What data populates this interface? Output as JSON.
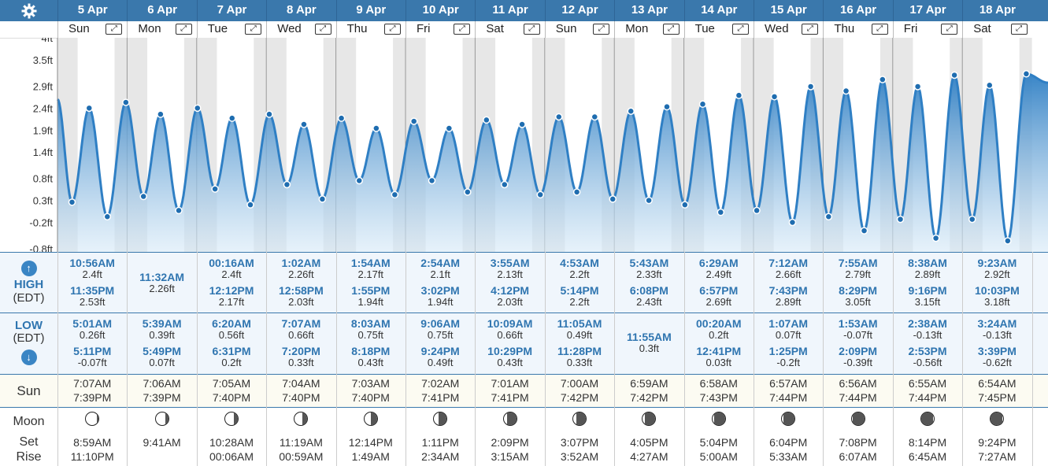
{
  "header": {
    "settings_icon": "gear-icon"
  },
  "days": [
    {
      "date": "5 Apr",
      "dow": "Sun",
      "high": [
        {
          "time": "10:56AM",
          "h": "2.4ft"
        },
        {
          "time": "11:35PM",
          "h": "2.53ft"
        }
      ],
      "low": [
        {
          "time": "5:01AM",
          "h": "0.26ft"
        },
        {
          "time": "5:11PM",
          "h": "-0.07ft"
        }
      ],
      "sunrise": "7:07AM",
      "sunset": "7:39PM",
      "moon_illum": 0.85,
      "moon_side": "left",
      "moonset": "8:59AM",
      "moonrise": "11:10PM"
    },
    {
      "date": "6 Apr",
      "dow": "Mon",
      "high": [
        {
          "time": "11:32AM",
          "h": "2.26ft"
        }
      ],
      "low": [
        {
          "time": "5:39AM",
          "h": "0.39ft"
        },
        {
          "time": "5:49PM",
          "h": "0.07ft"
        }
      ],
      "sunrise": "7:06AM",
      "sunset": "7:39PM",
      "moon_illum": 0.78,
      "moon_side": "left",
      "moonset": "9:41AM",
      "moonrise": ""
    },
    {
      "date": "7 Apr",
      "dow": "Tue",
      "high": [
        {
          "time": "00:16AM",
          "h": "2.4ft"
        },
        {
          "time": "12:12PM",
          "h": "2.17ft"
        }
      ],
      "low": [
        {
          "time": "6:20AM",
          "h": "0.56ft"
        },
        {
          "time": "6:31PM",
          "h": "0.2ft"
        }
      ],
      "sunrise": "7:05AM",
      "sunset": "7:40PM",
      "moon_illum": 0.68,
      "moon_side": "left",
      "moonset": "10:28AM",
      "moonrise": "00:06AM"
    },
    {
      "date": "8 Apr",
      "dow": "Wed",
      "high": [
        {
          "time": "1:02AM",
          "h": "2.26ft"
        },
        {
          "time": "12:58PM",
          "h": "2.03ft"
        }
      ],
      "low": [
        {
          "time": "7:07AM",
          "h": "0.66ft"
        },
        {
          "time": "7:20PM",
          "h": "0.33ft"
        }
      ],
      "sunrise": "7:04AM",
      "sunset": "7:40PM",
      "moon_illum": 0.55,
      "moon_side": "left",
      "moonset": "11:19AM",
      "moonrise": "00:59AM"
    },
    {
      "date": "9 Apr",
      "dow": "Thu",
      "high": [
        {
          "time": "1:54AM",
          "h": "2.17ft"
        },
        {
          "time": "1:55PM",
          "h": "1.94ft"
        }
      ],
      "low": [
        {
          "time": "8:03AM",
          "h": "0.75ft"
        },
        {
          "time": "8:18PM",
          "h": "0.43ft"
        }
      ],
      "sunrise": "7:03AM",
      "sunset": "7:40PM",
      "moon_illum": 0.45,
      "moon_side": "left",
      "moonset": "12:14PM",
      "moonrise": "1:49AM"
    },
    {
      "date": "10 Apr",
      "dow": "Fri",
      "high": [
        {
          "time": "2:54AM",
          "h": "2.1ft"
        },
        {
          "time": "3:02PM",
          "h": "1.94ft"
        }
      ],
      "low": [
        {
          "time": "9:06AM",
          "h": "0.75ft"
        },
        {
          "time": "9:24PM",
          "h": "0.49ft"
        }
      ],
      "sunrise": "7:02AM",
      "sunset": "7:41PM",
      "moon_illum": 0.35,
      "moon_side": "left",
      "moonset": "1:11PM",
      "moonrise": "2:34AM"
    },
    {
      "date": "11 Apr",
      "dow": "Sat",
      "high": [
        {
          "time": "3:55AM",
          "h": "2.13ft"
        },
        {
          "time": "4:12PM",
          "h": "2.03ft"
        }
      ],
      "low": [
        {
          "time": "10:09AM",
          "h": "0.66ft"
        },
        {
          "time": "10:29PM",
          "h": "0.43ft"
        }
      ],
      "sunrise": "7:01AM",
      "sunset": "7:41PM",
      "moon_illum": 0.26,
      "moon_side": "left",
      "moonset": "2:09PM",
      "moonrise": "3:15AM"
    },
    {
      "date": "12 Apr",
      "dow": "Sun",
      "high": [
        {
          "time": "4:53AM",
          "h": "2.2ft"
        },
        {
          "time": "5:14PM",
          "h": "2.2ft"
        }
      ],
      "low": [
        {
          "time": "11:05AM",
          "h": "0.49ft"
        },
        {
          "time": "11:28PM",
          "h": "0.33ft"
        }
      ],
      "sunrise": "7:00AM",
      "sunset": "7:42PM",
      "moon_illum": 0.18,
      "moon_side": "left",
      "moonset": "3:07PM",
      "moonrise": "3:52AM"
    },
    {
      "date": "13 Apr",
      "dow": "Mon",
      "high": [
        {
          "time": "5:43AM",
          "h": "2.33ft"
        },
        {
          "time": "6:08PM",
          "h": "2.43ft"
        }
      ],
      "low": [
        {
          "time": "11:55AM",
          "h": "0.3ft"
        }
      ],
      "sunrise": "6:59AM",
      "sunset": "7:42PM",
      "moon_illum": 0.11,
      "moon_side": "left",
      "moonset": "4:05PM",
      "moonrise": "4:27AM"
    },
    {
      "date": "14 Apr",
      "dow": "Tue",
      "high": [
        {
          "time": "6:29AM",
          "h": "2.49ft"
        },
        {
          "time": "6:57PM",
          "h": "2.69ft"
        }
      ],
      "low": [
        {
          "time": "00:20AM",
          "h": "0.2ft"
        },
        {
          "time": "12:41PM",
          "h": "0.03ft"
        }
      ],
      "sunrise": "6:58AM",
      "sunset": "7:43PM",
      "moon_illum": 0.06,
      "moon_side": "left",
      "moonset": "5:04PM",
      "moonrise": "5:00AM"
    },
    {
      "date": "15 Apr",
      "dow": "Wed",
      "high": [
        {
          "time": "7:12AM",
          "h": "2.66ft"
        },
        {
          "time": "7:43PM",
          "h": "2.89ft"
        }
      ],
      "low": [
        {
          "time": "1:07AM",
          "h": "0.07ft"
        },
        {
          "time": "1:25PM",
          "h": "-0.2ft"
        }
      ],
      "sunrise": "6:57AM",
      "sunset": "7:44PM",
      "moon_illum": 0.03,
      "moon_side": "left",
      "moonset": "6:04PM",
      "moonrise": "5:33AM"
    },
    {
      "date": "16 Apr",
      "dow": "Thu",
      "high": [
        {
          "time": "7:55AM",
          "h": "2.79ft"
        },
        {
          "time": "8:29PM",
          "h": "3.05ft"
        }
      ],
      "low": [
        {
          "time": "1:53AM",
          "h": "-0.07ft"
        },
        {
          "time": "2:09PM",
          "h": "-0.39ft"
        }
      ],
      "sunrise": "6:56AM",
      "sunset": "7:44PM",
      "moon_illum": 0.01,
      "moon_side": "left",
      "moonset": "7:08PM",
      "moonrise": "6:07AM"
    },
    {
      "date": "17 Apr",
      "dow": "Fri",
      "high": [
        {
          "time": "8:38AM",
          "h": "2.89ft"
        },
        {
          "time": "9:16PM",
          "h": "3.15ft"
        }
      ],
      "low": [
        {
          "time": "2:38AM",
          "h": "-0.13ft"
        },
        {
          "time": "2:53PM",
          "h": "-0.56ft"
        }
      ],
      "sunrise": "6:55AM",
      "sunset": "7:44PM",
      "moon_illum": 0.02,
      "moon_side": "right",
      "moonset": "8:14PM",
      "moonrise": "6:45AM"
    },
    {
      "date": "18 Apr",
      "dow": "Sat",
      "high": [
        {
          "time": "9:23AM",
          "h": "2.92ft"
        },
        {
          "time": "10:03PM",
          "h": "3.18ft"
        }
      ],
      "low": [
        {
          "time": "3:24AM",
          "h": "-0.13ft"
        },
        {
          "time": "3:39PM",
          "h": "-0.62ft"
        }
      ],
      "sunrise": "6:54AM",
      "sunset": "7:45PM",
      "moon_illum": 0.05,
      "moon_side": "right",
      "moonset": "9:24PM",
      "moonrise": "7:27AM"
    }
  ],
  "labels": {
    "high": "HIGH",
    "high_tz": "(EDT)",
    "low": "LOW",
    "low_tz": "(EDT)",
    "sun": "Sun",
    "moon": "Moon",
    "set": "Set",
    "rise": "Rise",
    "up_icon": "↑",
    "down_icon": "↓",
    "expand_icon": "⤢"
  },
  "chart_data": {
    "type": "area",
    "ylabels": [
      "4ft",
      "3.5ft",
      "2.9ft",
      "2.4ft",
      "1.9ft",
      "1.4ft",
      "0.8ft",
      "0.3ft",
      "-0.2ft",
      "-0.8ft"
    ],
    "ylim": [
      -0.8,
      4.0
    ],
    "series": [
      {
        "values": [
          {
            "x": "2020-04-05T05:01",
            "y": 0.26
          },
          {
            "x": "2020-04-05T10:56",
            "y": 2.4
          },
          {
            "x": "2020-04-05T17:11",
            "y": -0.07
          },
          {
            "x": "2020-04-05T23:35",
            "y": 2.53
          },
          {
            "x": "2020-04-06T05:39",
            "y": 0.39
          },
          {
            "x": "2020-04-06T11:32",
            "y": 2.26
          },
          {
            "x": "2020-04-06T17:49",
            "y": 0.07
          },
          {
            "x": "2020-04-07T00:16",
            "y": 2.4
          },
          {
            "x": "2020-04-07T06:20",
            "y": 0.56
          },
          {
            "x": "2020-04-07T12:12",
            "y": 2.17
          },
          {
            "x": "2020-04-07T18:31",
            "y": 0.2
          },
          {
            "x": "2020-04-08T01:02",
            "y": 2.26
          },
          {
            "x": "2020-04-08T07:07",
            "y": 0.66
          },
          {
            "x": "2020-04-08T12:58",
            "y": 2.03
          },
          {
            "x": "2020-04-08T19:20",
            "y": 0.33
          },
          {
            "x": "2020-04-09T01:54",
            "y": 2.17
          },
          {
            "x": "2020-04-09T08:03",
            "y": 0.75
          },
          {
            "x": "2020-04-09T13:55",
            "y": 1.94
          },
          {
            "x": "2020-04-09T20:18",
            "y": 0.43
          },
          {
            "x": "2020-04-10T02:54",
            "y": 2.1
          },
          {
            "x": "2020-04-10T09:06",
            "y": 0.75
          },
          {
            "x": "2020-04-10T15:02",
            "y": 1.94
          },
          {
            "x": "2020-04-10T21:24",
            "y": 0.49
          },
          {
            "x": "2020-04-11T03:55",
            "y": 2.13
          },
          {
            "x": "2020-04-11T10:09",
            "y": 0.66
          },
          {
            "x": "2020-04-11T16:12",
            "y": 2.03
          },
          {
            "x": "2020-04-11T22:29",
            "y": 0.43
          },
          {
            "x": "2020-04-12T04:53",
            "y": 2.2
          },
          {
            "x": "2020-04-12T11:05",
            "y": 0.49
          },
          {
            "x": "2020-04-12T17:14",
            "y": 2.2
          },
          {
            "x": "2020-04-12T23:28",
            "y": 0.33
          },
          {
            "x": "2020-04-13T05:43",
            "y": 2.33
          },
          {
            "x": "2020-04-13T11:55",
            "y": 0.3
          },
          {
            "x": "2020-04-13T18:08",
            "y": 2.43
          },
          {
            "x": "2020-04-14T00:20",
            "y": 0.2
          },
          {
            "x": "2020-04-14T06:29",
            "y": 2.49
          },
          {
            "x": "2020-04-14T12:41",
            "y": 0.03
          },
          {
            "x": "2020-04-14T18:57",
            "y": 2.69
          },
          {
            "x": "2020-04-15T01:07",
            "y": 0.07
          },
          {
            "x": "2020-04-15T07:12",
            "y": 2.66
          },
          {
            "x": "2020-04-15T13:25",
            "y": -0.2
          },
          {
            "x": "2020-04-15T19:43",
            "y": 2.89
          },
          {
            "x": "2020-04-16T01:53",
            "y": -0.07
          },
          {
            "x": "2020-04-16T07:55",
            "y": 2.79
          },
          {
            "x": "2020-04-16T14:09",
            "y": -0.39
          },
          {
            "x": "2020-04-16T20:29",
            "y": 3.05
          },
          {
            "x": "2020-04-17T02:38",
            "y": -0.13
          },
          {
            "x": "2020-04-17T08:38",
            "y": 2.89
          },
          {
            "x": "2020-04-17T14:53",
            "y": -0.56
          },
          {
            "x": "2020-04-17T21:16",
            "y": 3.15
          },
          {
            "x": "2020-04-18T03:24",
            "y": -0.13
          },
          {
            "x": "2020-04-18T09:23",
            "y": 2.92
          },
          {
            "x": "2020-04-18T15:39",
            "y": -0.62
          },
          {
            "x": "2020-04-18T22:03",
            "y": 3.18
          }
        ]
      }
    ],
    "grid": true
  },
  "colors": {
    "header": "#3a78ac",
    "tide_line": "#2f7fc4",
    "tide_fill": "#5aa3dc",
    "night": "#e7e7e7",
    "highlight": "#2f75b0"
  }
}
